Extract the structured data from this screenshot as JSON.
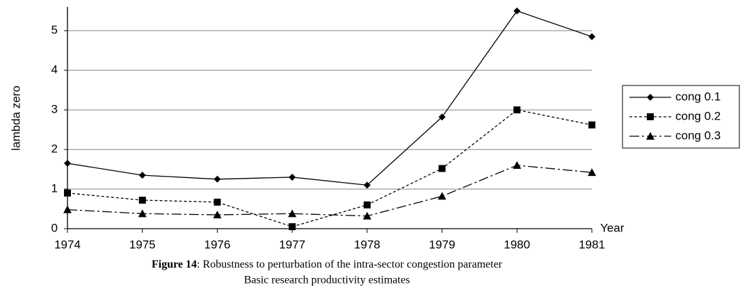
{
  "chart_data": {
    "type": "line",
    "caption": {
      "label": "Figure 14",
      "text": ": Robustness to perturbation of the intra-sector congestion parameter"
    },
    "subtitle": "Basic research productivity estimates",
    "y_label": "lambda zero",
    "x_label": "Year",
    "categories": [
      "1974",
      "1975",
      "1976",
      "1977",
      "1978",
      "1979",
      "1980",
      "1981"
    ],
    "series": [
      {
        "name": "cong 0.1",
        "color": "#000000",
        "marker": "diamond",
        "line_style": "solid",
        "values": [
          1.65,
          1.35,
          1.25,
          1.3,
          1.1,
          2.82,
          5.5,
          4.85
        ]
      },
      {
        "name": "cong 0.2",
        "color": "#000000",
        "marker": "square",
        "line_style": "dashed",
        "values": [
          0.9,
          0.72,
          0.67,
          0.05,
          0.6,
          1.52,
          3.0,
          2.62
        ]
      },
      {
        "name": "cong 0.3",
        "color": "#000000",
        "marker": "triangle",
        "line_style": "dashdot",
        "values": [
          0.48,
          0.38,
          0.35,
          0.38,
          0.32,
          0.82,
          1.6,
          1.42
        ]
      }
    ],
    "ylim": [
      0,
      5.6
    ],
    "yticks": [
      0,
      1,
      2,
      3,
      4,
      5
    ],
    "grid": true,
    "legend": "right"
  }
}
